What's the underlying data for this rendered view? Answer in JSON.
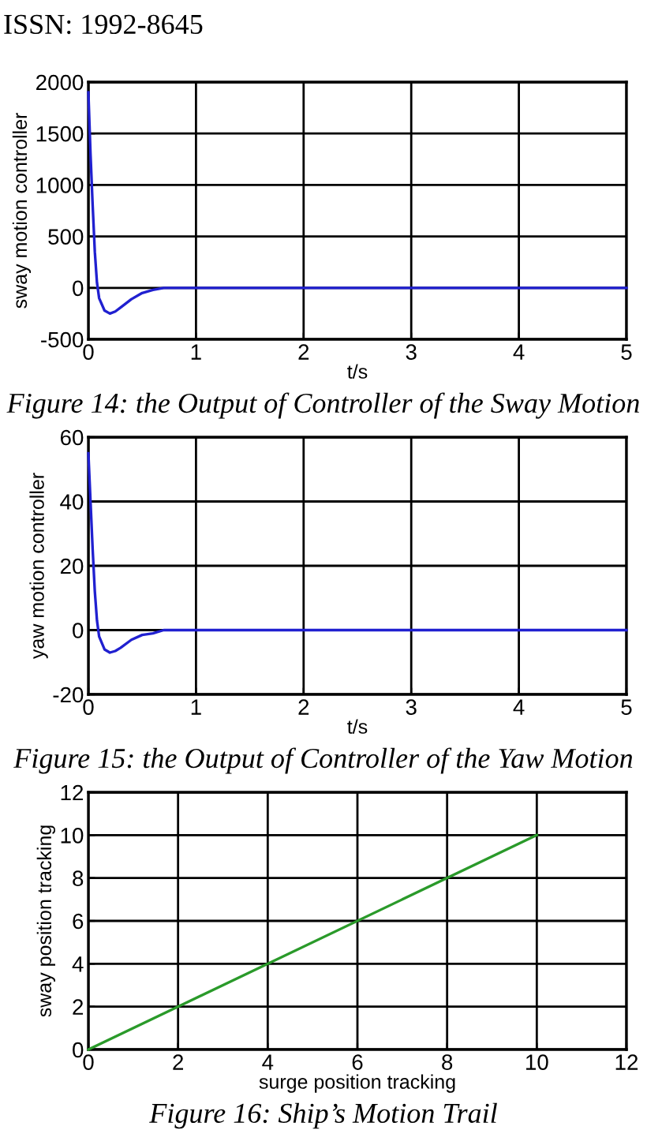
{
  "chart_data": [
    {
      "type": "line",
      "title": "Figure 14: the Output of Controller of the Sway Motion",
      "xlabel": "t/s",
      "ylabel": "sway motion controller",
      "annotations": [
        "ISSN: 1992-8645"
      ],
      "series": [
        {
          "color": "#2020d0",
          "x": [
            0,
            0.02,
            0.04,
            0.06,
            0.08,
            0.1,
            0.15,
            0.2,
            0.25,
            0.3,
            0.4,
            0.5,
            0.6,
            0.7,
            0.8,
            5
          ],
          "values": [
            1900,
            1300,
            800,
            350,
            50,
            -100,
            -220,
            -250,
            -230,
            -190,
            -110,
            -50,
            -20,
            0,
            0,
            0
          ]
        }
      ],
      "xlim": [
        0,
        5
      ],
      "ylim": [
        -500,
        2000
      ],
      "xticks": [
        0,
        1,
        2,
        3,
        4,
        5
      ],
      "yticks": [
        -500,
        0,
        500,
        1000,
        1500,
        2000
      ],
      "grid": true
    },
    {
      "type": "line",
      "title": "Figure 15: the Output of Controller of the Yaw Motion",
      "xlabel": "t/s",
      "ylabel": "yaw motion controller",
      "series": [
        {
          "color": "#2020d0",
          "x": [
            0,
            0.02,
            0.04,
            0.06,
            0.08,
            0.1,
            0.15,
            0.2,
            0.25,
            0.3,
            0.4,
            0.5,
            0.6,
            0.7,
            0.8,
            5
          ],
          "values": [
            55,
            40,
            25,
            12,
            3,
            -2,
            -6,
            -7,
            -6.5,
            -5.5,
            -3,
            -1.5,
            -1,
            0,
            0,
            0
          ]
        }
      ],
      "xlim": [
        0,
        5
      ],
      "ylim": [
        -20,
        60
      ],
      "xticks": [
        0,
        1,
        2,
        3,
        4,
        5
      ],
      "yticks": [
        -20,
        0,
        20,
        40,
        60
      ],
      "grid": true
    },
    {
      "type": "line",
      "title": "Figure 16: Ship’s Motion Trail",
      "xlabel": "surge position tracking",
      "ylabel": "sway position tracking",
      "series": [
        {
          "color": "#2a9a2a",
          "x": [
            0,
            10
          ],
          "values": [
            0,
            10
          ]
        }
      ],
      "xlim": [
        0,
        12
      ],
      "ylim": [
        0,
        12
      ],
      "xticks": [
        0,
        2,
        4,
        6,
        8,
        10,
        12
      ],
      "yticks": [
        0,
        2,
        4,
        6,
        8,
        10,
        12
      ],
      "grid": true
    }
  ]
}
